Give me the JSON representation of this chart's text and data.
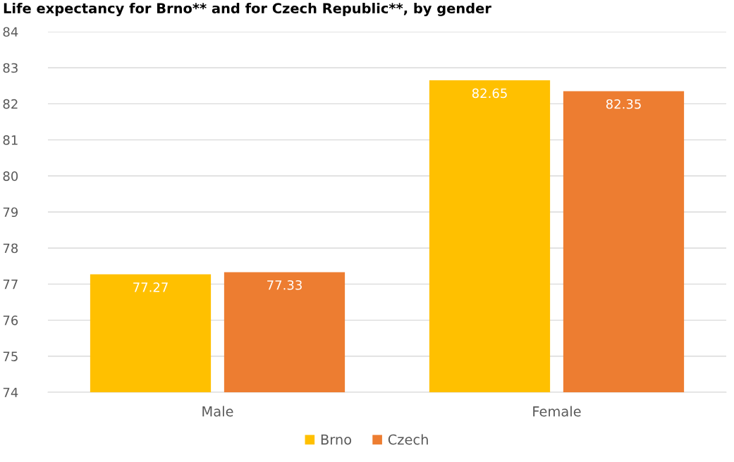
{
  "chart_data": {
    "type": "bar",
    "title": "Life expectancy for Brno** and for Czech Republic**, by gender",
    "categories": [
      "Male",
      "Female"
    ],
    "series": [
      {
        "name": "Brno",
        "color": "#ffc000",
        "values": [
          77.27,
          82.65
        ]
      },
      {
        "name": "Czech",
        "color": "#ed7d31",
        "values": [
          77.33,
          82.35
        ]
      }
    ],
    "ylim": [
      74,
      84
    ],
    "yticks": [
      74,
      75,
      76,
      77,
      78,
      79,
      80,
      81,
      82,
      83,
      84
    ],
    "grid": "y",
    "legend": "bottom",
    "data_labels": true
  }
}
